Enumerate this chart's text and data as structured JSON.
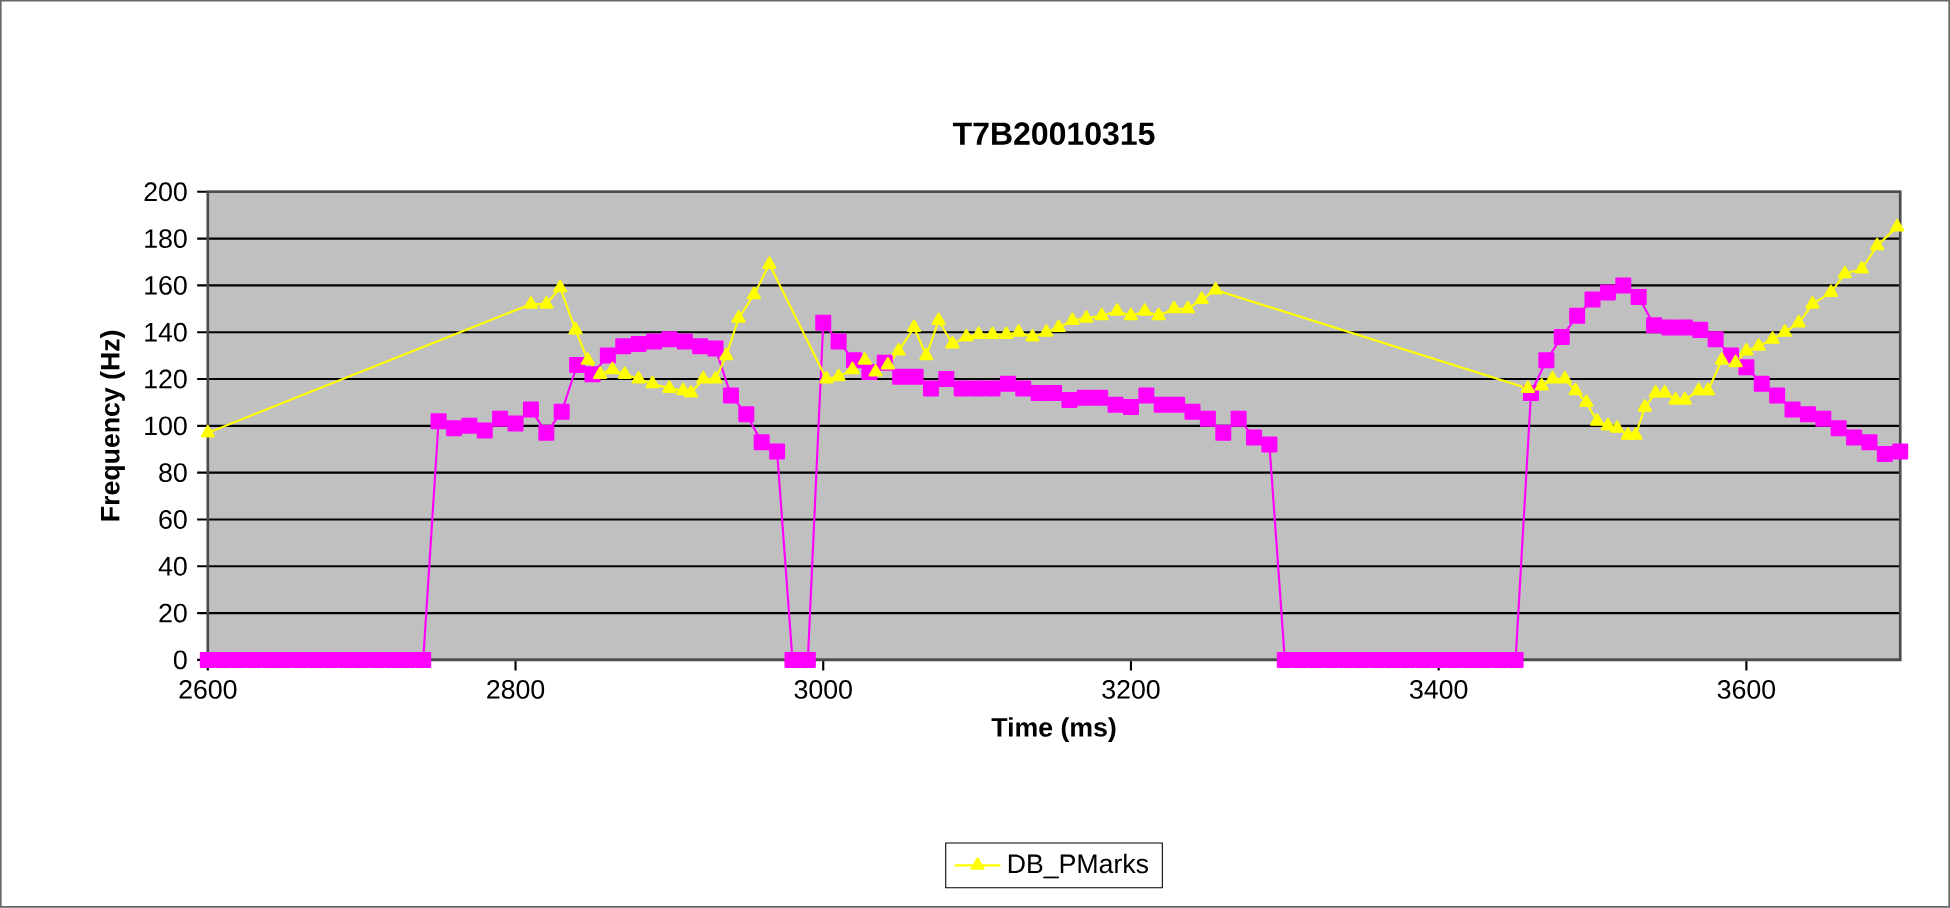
{
  "chart_data": {
    "type": "line",
    "title": "T7B20010315",
    "xlabel": "Time (ms)",
    "ylabel": "Frequency (Hz)",
    "xlim": [
      2600,
      3700
    ],
    "xticks": [
      2600,
      2800,
      3000,
      3200,
      3400,
      3600
    ],
    "ylim": [
      0,
      200
    ],
    "yticks": [
      0,
      20,
      40,
      60,
      80,
      100,
      120,
      140,
      160,
      180,
      200
    ],
    "grid": "y",
    "legend": "bottom",
    "line_style": "solid",
    "series": [
      {
        "color": "#ff00ff",
        "marker": "square",
        "x": [
          2600,
          2610,
          2620,
          2630,
          2640,
          2650,
          2660,
          2670,
          2680,
          2690,
          2700,
          2710,
          2720,
          2730,
          2740,
          2750,
          2760,
          2770,
          2780,
          2790,
          2800,
          2810,
          2820,
          2830,
          2840,
          2850,
          2860,
          2870,
          2880,
          2890,
          2900,
          2910,
          2920,
          2930,
          2940,
          2950,
          2960,
          2970,
          2980,
          2990,
          3000,
          3010,
          3020,
          3030,
          3040,
          3050,
          3060,
          3070,
          3080,
          3090,
          3100,
          3110,
          3120,
          3130,
          3140,
          3150,
          3160,
          3170,
          3180,
          3190,
          3200,
          3210,
          3220,
          3230,
          3240,
          3250,
          3260,
          3270,
          3280,
          3290,
          3300,
          3310,
          3320,
          3330,
          3340,
          3350,
          3360,
          3370,
          3380,
          3390,
          3400,
          3410,
          3420,
          3430,
          3440,
          3450,
          3460,
          3470,
          3480,
          3490,
          3500,
          3510,
          3520,
          3530,
          3540,
          3550,
          3560,
          3570,
          3580,
          3590,
          3600,
          3610,
          3620,
          3630,
          3640,
          3650,
          3660,
          3670,
          3680,
          3690,
          3700
        ],
        "values": [
          0,
          0,
          0,
          0,
          0,
          0,
          0,
          0,
          0,
          0,
          0,
          0,
          0,
          0,
          0,
          102,
          99,
          100,
          98,
          103,
          101,
          107,
          97,
          106,
          126,
          122,
          130,
          134,
          135,
          136,
          137,
          136,
          134,
          133,
          113,
          105,
          93,
          89,
          0,
          0,
          144,
          136,
          128,
          123,
          127,
          121,
          121,
          116,
          120,
          116,
          116,
          116,
          118,
          116,
          114,
          114,
          111,
          112,
          112,
          109,
          108,
          113,
          109,
          109,
          106,
          103,
          97,
          103,
          95,
          92,
          0,
          0,
          0,
          0,
          0,
          0,
          0,
          0,
          0,
          0,
          0,
          0,
          0,
          0,
          0,
          0,
          114,
          128,
          138,
          147,
          154,
          157,
          160,
          155,
          143,
          142,
          142,
          141,
          137,
          130,
          125,
          118,
          113,
          107,
          105,
          103,
          99,
          95,
          93,
          88,
          89
        ]
      },
      {
        "name": "DB_PMarks",
        "color": "#ffff00",
        "marker": "triangle",
        "x": [
          2600,
          2810,
          2820,
          2829,
          2839,
          2847,
          2855,
          2863,
          2871,
          2880,
          2889,
          2900,
          2909,
          2914,
          2922,
          2930,
          2937,
          2945,
          2955,
          2965,
          3002,
          3010,
          3019,
          3027,
          3034,
          3042,
          3049,
          3059,
          3067,
          3075,
          3084,
          3093,
          3101,
          3110,
          3119,
          3127,
          3136,
          3145,
          3153,
          3162,
          3171,
          3181,
          3191,
          3200,
          3209,
          3218,
          3228,
          3237,
          3246,
          3255,
          3458,
          3467,
          3474,
          3482,
          3489,
          3496,
          3503,
          3510,
          3516,
          3523,
          3528,
          3534,
          3541,
          3547,
          3554,
          3560,
          3569,
          3575,
          3584,
          3593,
          3600,
          3608,
          3617,
          3625,
          3634,
          3643,
          3655,
          3664,
          3675,
          3685,
          3698
        ],
        "values": [
          97,
          152,
          152,
          159,
          141,
          128,
          122,
          124,
          122,
          120,
          118,
          116,
          115,
          114,
          120,
          120,
          130,
          146,
          156,
          169,
          120,
          121,
          124,
          128,
          123,
          126,
          132,
          142,
          130,
          145,
          135,
          138,
          139,
          139,
          139,
          140,
          138,
          140,
          142,
          145,
          146,
          147,
          149,
          147,
          149,
          147,
          150,
          150,
          154,
          158,
          116,
          117,
          120,
          120,
          115,
          110,
          102,
          100,
          99,
          96,
          96,
          108,
          114,
          114,
          111,
          111,
          115,
          115,
          128,
          127,
          132,
          134,
          137,
          140,
          144,
          152,
          157,
          165,
          167,
          177,
          185
        ]
      }
    ]
  }
}
